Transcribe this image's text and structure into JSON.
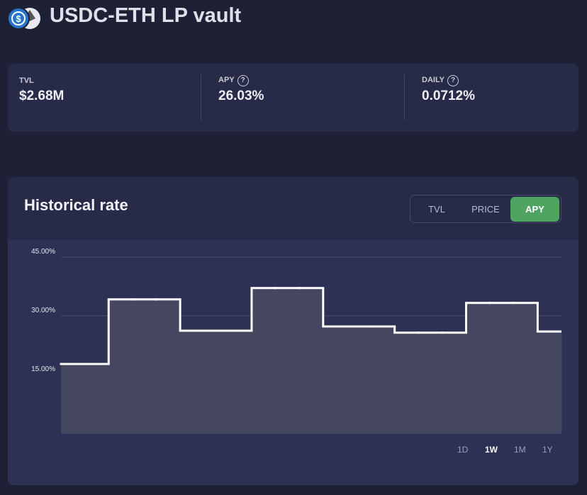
{
  "header": {
    "title": "USDC-ETH LP vault"
  },
  "stats": [
    {
      "label": "TVL",
      "value": "$2.68M"
    },
    {
      "label": "APY",
      "help": "?",
      "value": "26.03%"
    },
    {
      "label": "DAILY",
      "help": "?",
      "value": "0.0712%"
    }
  ],
  "panel": {
    "title": "Historical rate",
    "tabs": [
      "TVL",
      "PRICE",
      "APY"
    ],
    "active_tab": "APY",
    "ranges": [
      "1D",
      "1W",
      "1M",
      "1Y"
    ],
    "active_range": "1W"
  },
  "chart_data": {
    "type": "line",
    "step": true,
    "color": "#ffffff",
    "fill": "#45465f",
    "categories": [
      null,
      null,
      null,
      null,
      null,
      null,
      null,
      null,
      null,
      null,
      null,
      null,
      null,
      null,
      null,
      null,
      null,
      null,
      null,
      null,
      null
    ],
    "values": [
      17.7,
      17.7,
      34.2,
      34.2,
      34.2,
      26.2,
      26.2,
      26.2,
      37.1,
      37.1,
      37.1,
      27.3,
      27.3,
      27.3,
      25.7,
      25.7,
      25.7,
      33.3,
      33.3,
      33.3,
      26.0
    ],
    "ylim": [
      0,
      45
    ],
    "yticks": [
      {
        "value": 15,
        "label": "15.00%"
      },
      {
        "value": 30,
        "label": "30.00%"
      },
      {
        "value": 45,
        "label": "45.00%"
      }
    ],
    "grid": true
  }
}
